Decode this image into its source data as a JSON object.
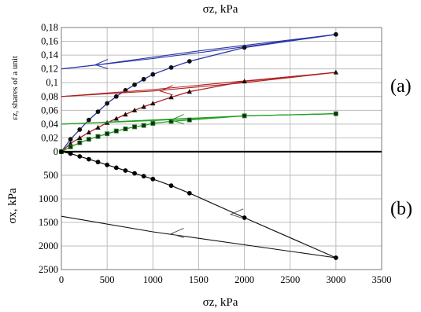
{
  "chart_data": {
    "type": "line",
    "top_label": "σz, kPa",
    "xlabel": "σz, kPa",
    "x_ticks": [
      0,
      500,
      1000,
      1500,
      2000,
      2500,
      3000,
      3500
    ],
    "xlim": [
      0,
      3500
    ],
    "panel_a": {
      "label": "(a)",
      "ylabel": "εz, shares of a unit",
      "ylim": [
        0,
        0.18
      ],
      "y_ticks": [
        "0",
        "0,02",
        "0,04",
        "0,06",
        "0,08",
        "0,1",
        "0,12",
        "0,14",
        "0,16",
        "0,18"
      ],
      "y_tick_values": [
        0,
        0.02,
        0.04,
        0.06,
        0.08,
        0.1,
        0.12,
        0.14,
        0.16,
        0.18
      ],
      "series": [
        {
          "color": "#2a35a8",
          "marker": "circle",
          "loading": [
            [
              0,
              0
            ],
            [
              100,
              0.018
            ],
            [
              200,
              0.032
            ],
            [
              300,
              0.046
            ],
            [
              400,
              0.058
            ],
            [
              500,
              0.07
            ],
            [
              600,
              0.08
            ],
            [
              700,
              0.089
            ],
            [
              800,
              0.097
            ],
            [
              900,
              0.105
            ],
            [
              1000,
              0.112
            ],
            [
              1200,
              0.122
            ],
            [
              1400,
              0.131
            ],
            [
              2000,
              0.151
            ],
            [
              3000,
              0.17
            ]
          ],
          "unloading": [
            [
              3000,
              0.17
            ],
            [
              1500,
              0.146
            ],
            [
              400,
              0.126
            ],
            [
              0,
              0.12
            ]
          ],
          "reloading": [
            [
              0,
              0.12
            ],
            [
              1000,
              0.135
            ],
            [
              2000,
              0.152
            ],
            [
              3000,
              0.17
            ]
          ],
          "arrow": [
            370,
            0.126
          ]
        },
        {
          "color": "#b02020",
          "marker": "triangle",
          "loading": [
            [
              0,
              0
            ],
            [
              100,
              0.012
            ],
            [
              200,
              0.02
            ],
            [
              300,
              0.028
            ],
            [
              400,
              0.035
            ],
            [
              500,
              0.042
            ],
            [
              600,
              0.048
            ],
            [
              700,
              0.054
            ],
            [
              800,
              0.06
            ],
            [
              900,
              0.065
            ],
            [
              1000,
              0.07
            ],
            [
              1200,
              0.079
            ],
            [
              1400,
              0.087
            ],
            [
              2000,
              0.102
            ],
            [
              3000,
              0.115
            ]
          ],
          "unloading": [
            [
              3000,
              0.115
            ],
            [
              1800,
              0.1
            ],
            [
              1000,
              0.09
            ],
            [
              0,
              0.08
            ]
          ],
          "reloading": [
            [
              0,
              0.08
            ],
            [
              1000,
              0.088
            ],
            [
              2000,
              0.1
            ],
            [
              3000,
              0.115
            ]
          ],
          "arrow": [
            1080,
            0.088
          ]
        },
        {
          "color": "#1f9e1f",
          "marker": "square",
          "loading": [
            [
              0,
              0
            ],
            [
              100,
              0.007
            ],
            [
              200,
              0.013
            ],
            [
              300,
              0.018
            ],
            [
              400,
              0.022
            ],
            [
              500,
              0.026
            ],
            [
              600,
              0.03
            ],
            [
              700,
              0.033
            ],
            [
              800,
              0.036
            ],
            [
              900,
              0.038
            ],
            [
              1000,
              0.041
            ],
            [
              1200,
              0.044
            ],
            [
              1400,
              0.046
            ],
            [
              2000,
              0.052
            ],
            [
              3000,
              0.055
            ]
          ],
          "unloading": [
            [
              3000,
              0.055
            ],
            [
              2000,
              0.052
            ],
            [
              1000,
              0.045
            ],
            [
              0,
              0.04
            ]
          ],
          "reloading": [
            [
              0,
              0.04
            ],
            [
              1000,
              0.046
            ],
            [
              2000,
              0.052
            ],
            [
              3000,
              0.055
            ]
          ],
          "arrow": [
            1200,
            0.046
          ]
        }
      ]
    },
    "panel_b": {
      "label": "(b)",
      "ylabel": "σx, kPa",
      "ylim": [
        0,
        2500
      ],
      "y_ticks": [
        "0",
        "500",
        "1000",
        "1500",
        "2000",
        "2500"
      ],
      "y_tick_values": [
        0,
        500,
        1000,
        1500,
        2000,
        2500
      ],
      "series": [
        {
          "color": "#111111",
          "marker": "circle",
          "loading": [
            [
              0,
              0
            ],
            [
              100,
              40
            ],
            [
              200,
              100
            ],
            [
              300,
              160
            ],
            [
              400,
              220
            ],
            [
              500,
              280
            ],
            [
              600,
              340
            ],
            [
              700,
              400
            ],
            [
              800,
              460
            ],
            [
              900,
              520
            ],
            [
              1000,
              580
            ],
            [
              1200,
              720
            ],
            [
              1400,
              880
            ],
            [
              2000,
              1400
            ],
            [
              3000,
              2250
            ]
          ],
          "unloading": [
            [
              3000,
              2250
            ],
            [
              1000,
              1700
            ],
            [
              0,
              1370
            ]
          ],
          "arrow": [
            1200,
            1740
          ],
          "arrow2": [
            1850,
            1330
          ]
        }
      ]
    }
  }
}
